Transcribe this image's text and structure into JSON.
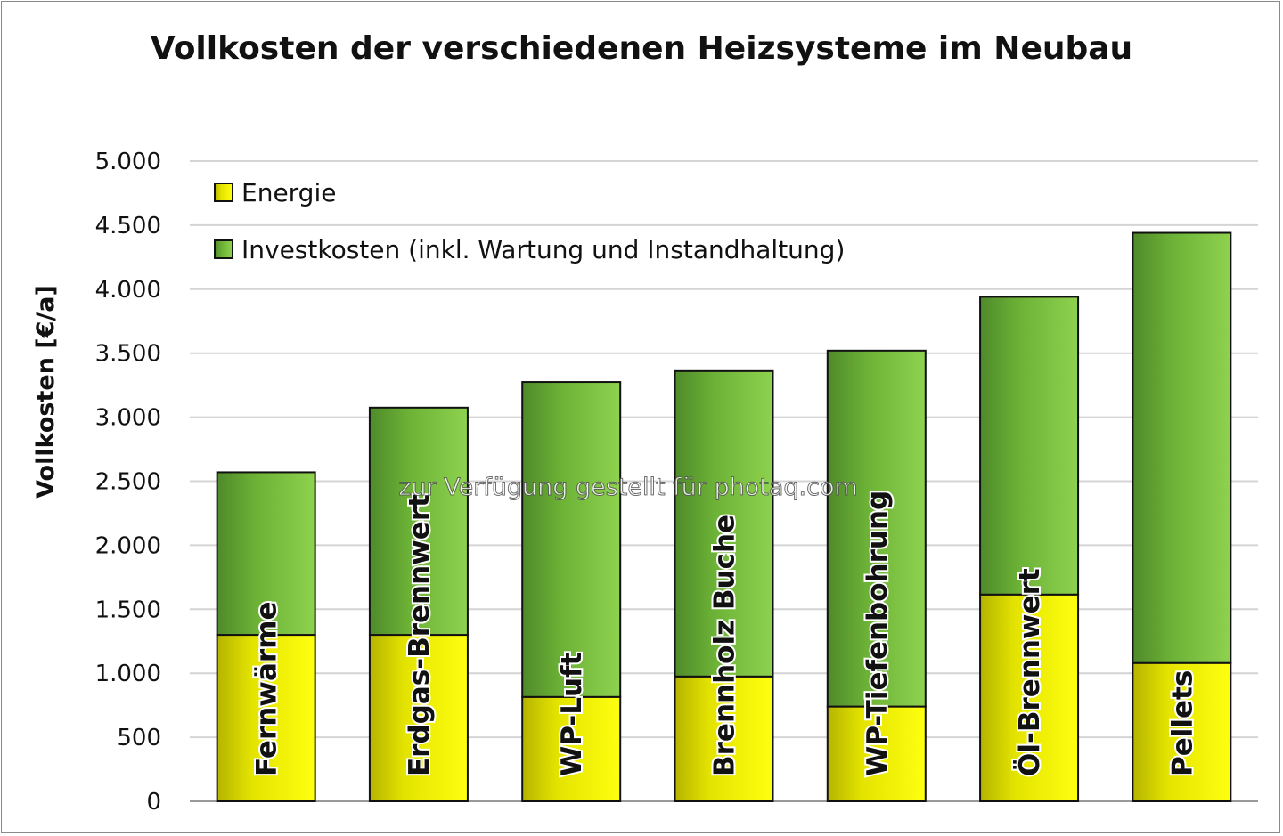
{
  "chart_data": {
    "type": "bar",
    "stacked": true,
    "title": "Vollkosten der verschiedenen Heizsysteme im Neubau",
    "xlabel": "",
    "ylabel": "Vollkosten [€/a]",
    "ylim": [
      0,
      5000
    ],
    "yticks": [
      0,
      500,
      1000,
      1500,
      2000,
      2500,
      3000,
      3500,
      4000,
      4500,
      5000
    ],
    "ytick_labels": [
      "0",
      "500",
      "1.000",
      "1.500",
      "2.000",
      "2.500",
      "3.000",
      "3.500",
      "4.000",
      "4.500",
      "5.000"
    ],
    "grid": true,
    "legend_position": "top-left",
    "categories": [
      "Fernwärme",
      "Erdgas-Brennwert",
      "WP-Luft",
      "Brennholz Buche",
      "WP-Tiefenbohrung",
      "Öl-Brennwert",
      "Pellets"
    ],
    "series": [
      {
        "name": "Energie",
        "color": "#f2f200",
        "values": [
          1300,
          1300,
          815,
          975,
          740,
          1615,
          1080
        ]
      },
      {
        "name": "Investkosten (inkl. Wartung und Instandhaltung)",
        "color": "#78c23c",
        "values": [
          1270,
          1775,
          2460,
          2385,
          2780,
          2325,
          3360
        ]
      }
    ]
  },
  "watermark": "zur Verfügung gestellt für photaq.com"
}
